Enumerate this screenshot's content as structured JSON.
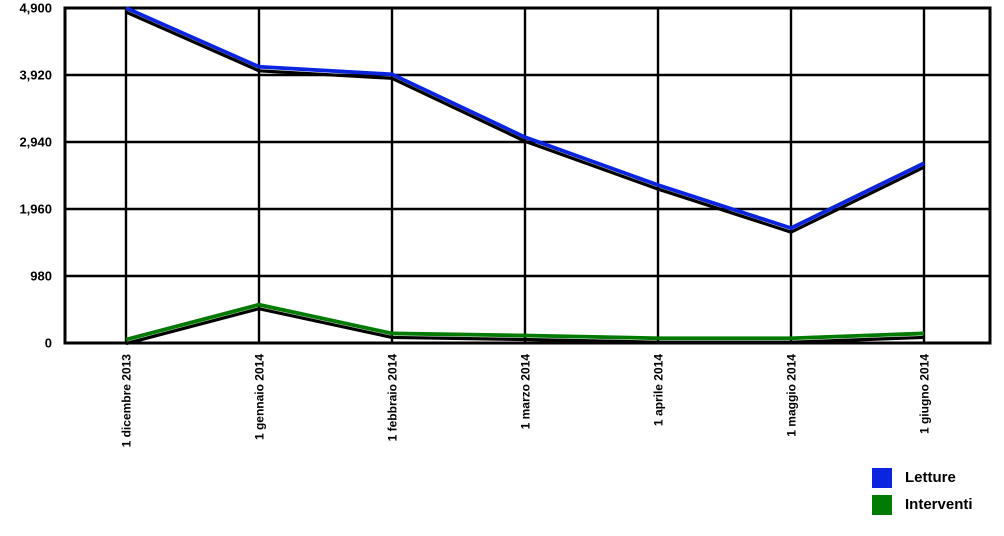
{
  "chart_data": {
    "type": "line",
    "title": "",
    "xlabel": "",
    "ylabel": "",
    "x_labels": [
      "1 dicembre 2013",
      "1 gennaio 2014",
      "1 febbraio 2014",
      "1 marzo 2014",
      "1 aprile 2014",
      "1 maggio 2014",
      "1 giugno 2014"
    ],
    "y_ticks": [
      0,
      980,
      1960,
      2940,
      3920,
      4900
    ],
    "y_tick_labels": [
      "0",
      "980",
      "1,960",
      "2,940",
      "3,920",
      "4,900"
    ],
    "ylim": [
      0,
      4900
    ],
    "grid": true,
    "legend_position": "bottom-right",
    "line_shadow_color": "#000000",
    "grid_color": "#000000",
    "series": [
      {
        "name": "Letture",
        "color": "#0b24dd",
        "values": [
          4900,
          4040,
          3930,
          3010,
          2310,
          1680,
          2630
        ]
      },
      {
        "name": "Interventi",
        "color": "#007a00",
        "values": [
          50,
          560,
          140,
          110,
          70,
          70,
          140
        ]
      }
    ]
  }
}
